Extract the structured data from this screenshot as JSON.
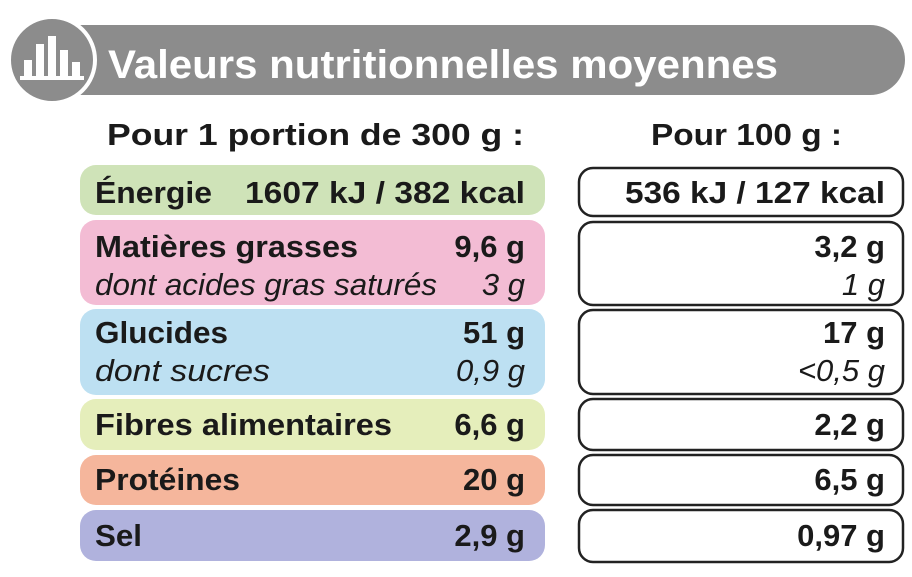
{
  "header": {
    "title": "Valeurs nutritionnelles moyennes"
  },
  "columns": {
    "per_portion": "Pour 1 portion de 300 g :",
    "per_100g": "Pour 100 g :"
  },
  "rows": [
    {
      "label": "Énergie",
      "per_portion": "1607 kJ / 382 kcal",
      "per_100g": "536 kJ / 127 kcal"
    },
    {
      "label": "Matières grasses",
      "per_portion": "9,6 g",
      "per_100g": "3,2 g",
      "sub": {
        "label": "dont acides gras saturés",
        "per_portion": "3 g",
        "per_100g": "1 g"
      }
    },
    {
      "label": "Glucides",
      "per_portion": "51 g",
      "per_100g": "17 g",
      "sub": {
        "label": "dont sucres",
        "per_portion": "0,9 g",
        "per_100g": "<0,5 g"
      }
    },
    {
      "label": "Fibres alimentaires",
      "per_portion": "6,6 g",
      "per_100g": "2,2 g"
    },
    {
      "label": "Protéines",
      "per_portion": "20 g",
      "per_100g": "6,5 g"
    },
    {
      "label": "Sel",
      "per_portion": "2,9 g",
      "per_100g": "0,97 g"
    }
  ]
}
